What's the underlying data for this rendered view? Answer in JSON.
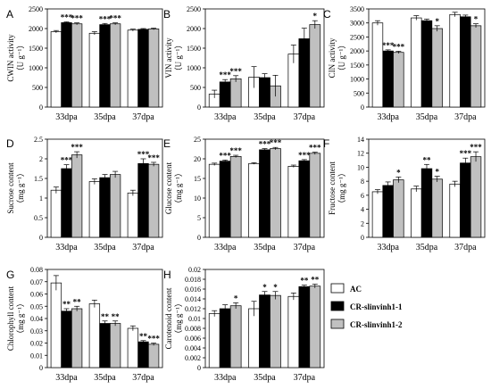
{
  "legend": {
    "items": [
      {
        "label": "AC",
        "color": "#ffffff"
      },
      {
        "label": "CR-slinvinh1-1",
        "color": "#000000"
      },
      {
        "label": "CR-slinvinh1-2",
        "color": "#c0c0c0"
      }
    ]
  },
  "chart_data": [
    {
      "panel": "A",
      "type": "bar",
      "ylabel": [
        "CWIN activity",
        "（U g⁻¹）"
      ],
      "categories": [
        "33dpa",
        "35dpa",
        "37dpa"
      ],
      "ylim": [
        0,
        2500
      ],
      "yticks": [
        0,
        500,
        1000,
        1500,
        2000,
        2500
      ],
      "series": [
        {
          "values": [
            1920,
            1880,
            1960
          ],
          "errors": [
            30,
            40,
            25
          ]
        },
        {
          "values": [
            2150,
            2100,
            1980
          ],
          "errors": [
            20,
            30,
            20
          ]
        },
        {
          "values": [
            2120,
            2120,
            1990
          ],
          "errors": [
            25,
            25,
            20
          ]
        }
      ],
      "significance": [
        [
          "",
          "",
          ""
        ],
        [
          "***",
          "***",
          ""
        ],
        [
          "***",
          "***",
          ""
        ]
      ]
    },
    {
      "panel": "B",
      "type": "bar",
      "ylabel": [
        "VIN activity",
        "（U g⁻¹）"
      ],
      "categories": [
        "33dpa",
        "35dpa",
        "37dpa"
      ],
      "ylim": [
        0,
        2500
      ],
      "yticks": [
        0,
        500,
        1000,
        1500,
        2000,
        2500
      ],
      "series": [
        {
          "values": [
            330,
            760,
            1350
          ],
          "errors": [
            100,
            270,
            230
          ]
        },
        {
          "values": [
            640,
            750,
            1740
          ],
          "errors": [
            60,
            100,
            270
          ]
        },
        {
          "values": [
            720,
            540,
            2100
          ],
          "errors": [
            80,
            270,
            100
          ]
        }
      ],
      "significance": [
        [
          "",
          "",
          ""
        ],
        [
          "***",
          "",
          ""
        ],
        [
          "***",
          "",
          "*"
        ]
      ]
    },
    {
      "panel": "C",
      "type": "bar",
      "ylabel": [
        "CIN activity",
        "（U g⁻¹）"
      ],
      "categories": [
        "33dpa",
        "35dpa",
        "37dpa"
      ],
      "ylim": [
        0,
        3500
      ],
      "yticks": [
        0,
        500,
        1000,
        1500,
        2000,
        2500,
        3000,
        3500
      ],
      "series": [
        {
          "values": [
            3000,
            3180,
            3300
          ],
          "errors": [
            80,
            80,
            80
          ]
        },
        {
          "values": [
            2000,
            3080,
            3220
          ],
          "errors": [
            40,
            60,
            60
          ]
        },
        {
          "values": [
            1950,
            2800,
            2900
          ],
          "errors": [
            40,
            100,
            70
          ]
        }
      ],
      "significance": [
        [
          "",
          "",
          ""
        ],
        [
          "***",
          "",
          ""
        ],
        [
          "***",
          "*",
          "*"
        ]
      ]
    },
    {
      "panel": "D",
      "type": "bar",
      "ylabel": [
        "Sucrose content",
        "（mg g⁻¹）"
      ],
      "categories": [
        "33dpa",
        "35dpa",
        "37dpa"
      ],
      "ylim": [
        0,
        2.5
      ],
      "yticks": [
        0,
        0.5,
        1.0,
        1.5,
        2.0,
        2.5
      ],
      "series": [
        {
          "values": [
            1.2,
            1.42,
            1.13
          ],
          "errors": [
            0.08,
            0.07,
            0.07
          ]
        },
        {
          "values": [
            1.75,
            1.52,
            1.88
          ],
          "errors": [
            0.1,
            0.08,
            0.12
          ]
        },
        {
          "values": [
            2.1,
            1.6,
            1.86
          ],
          "errors": [
            0.08,
            0.08,
            0.05
          ]
        }
      ],
      "significance": [
        [
          "",
          "",
          ""
        ],
        [
          "***",
          "",
          "***"
        ],
        [
          "***",
          "",
          "***"
        ]
      ]
    },
    {
      "panel": "E",
      "type": "bar",
      "ylabel": [
        "Glucose content",
        "（mg g⁻¹）"
      ],
      "categories": [
        "33dpa",
        "35dpa",
        "37dpa"
      ],
      "ylim": [
        0,
        25
      ],
      "yticks": [
        0,
        5,
        10,
        15,
        20,
        25
      ],
      "series": [
        {
          "values": [
            18.6,
            18.8,
            18.1
          ],
          "errors": [
            0.3,
            0.2,
            0.3
          ]
        },
        {
          "values": [
            19.4,
            22.3,
            19.5
          ],
          "errors": [
            0.3,
            0.3,
            0.3
          ]
        },
        {
          "values": [
            20.6,
            22.6,
            21.4
          ],
          "errors": [
            0.3,
            0.3,
            0.3
          ]
        }
      ],
      "significance": [
        [
          "",
          "",
          ""
        ],
        [
          "***",
          "***",
          "***"
        ],
        [
          "***",
          "***",
          "***"
        ]
      ]
    },
    {
      "panel": "F",
      "type": "bar",
      "ylabel": [
        "Fructose content",
        "（mg g⁻¹）"
      ],
      "categories": [
        "33dpa",
        "35dpa",
        "37dpa"
      ],
      "ylim": [
        0,
        14
      ],
      "yticks": [
        0,
        2,
        4,
        6,
        8,
        10,
        12,
        14
      ],
      "series": [
        {
          "values": [
            6.5,
            6.9,
            7.6
          ],
          "errors": [
            0.3,
            0.4,
            0.4
          ]
        },
        {
          "values": [
            7.4,
            9.8,
            10.6
          ],
          "errors": [
            0.5,
            0.6,
            0.7
          ]
        },
        {
          "values": [
            8.2,
            8.3,
            11.5
          ],
          "errors": [
            0.4,
            0.4,
            0.7
          ]
        }
      ],
      "significance": [
        [
          "",
          "",
          ""
        ],
        [
          "",
          "**",
          "***"
        ],
        [
          "*",
          "*",
          "***"
        ]
      ]
    },
    {
      "panel": "G",
      "type": "bar",
      "ylabel": [
        "Chlorophyll content",
        "（mg g⁻¹）"
      ],
      "categories": [
        "33dpa",
        "35dpa",
        "37dpa"
      ],
      "ylim": [
        0,
        0.08
      ],
      "yticks": [
        0,
        0.01,
        0.02,
        0.03,
        0.04,
        0.05,
        0.06,
        0.07,
        0.08
      ],
      "series": [
        {
          "values": [
            0.069,
            0.052,
            0.032
          ],
          "errors": [
            0.006,
            0.003,
            0.002
          ]
        },
        {
          "values": [
            0.046,
            0.036,
            0.021
          ],
          "errors": [
            0.002,
            0.002,
            0.001
          ]
        },
        {
          "values": [
            0.048,
            0.036,
            0.019
          ],
          "errors": [
            0.002,
            0.002,
            0.001
          ]
        }
      ],
      "significance": [
        [
          "",
          "",
          ""
        ],
        [
          "**",
          "**",
          "**"
        ],
        [
          "**",
          "**",
          "***"
        ]
      ]
    },
    {
      "panel": "H",
      "type": "bar",
      "ylabel": [
        "Carotenoid content",
        "（mg g⁻¹）"
      ],
      "categories": [
        "33dpa",
        "35dpa",
        "37dpa"
      ],
      "ylim": [
        0,
        0.02
      ],
      "yticks": [
        0,
        0.002,
        0.004,
        0.006,
        0.008,
        0.01,
        0.012,
        0.014,
        0.016,
        0.018,
        0.02
      ],
      "series": [
        {
          "values": [
            0.011,
            0.012,
            0.0145
          ],
          "errors": [
            0.0006,
            0.0015,
            0.0007
          ]
        },
        {
          "values": [
            0.012,
            0.0148,
            0.0165
          ],
          "errors": [
            0.0008,
            0.0007,
            0.0003
          ]
        },
        {
          "values": [
            0.0126,
            0.0147,
            0.0166
          ],
          "errors": [
            0.0006,
            0.0008,
            0.0004
          ]
        }
      ],
      "significance": [
        [
          "",
          "",
          ""
        ],
        [
          "",
          "*",
          "**"
        ],
        [
          "*",
          "*",
          "**"
        ]
      ]
    }
  ]
}
